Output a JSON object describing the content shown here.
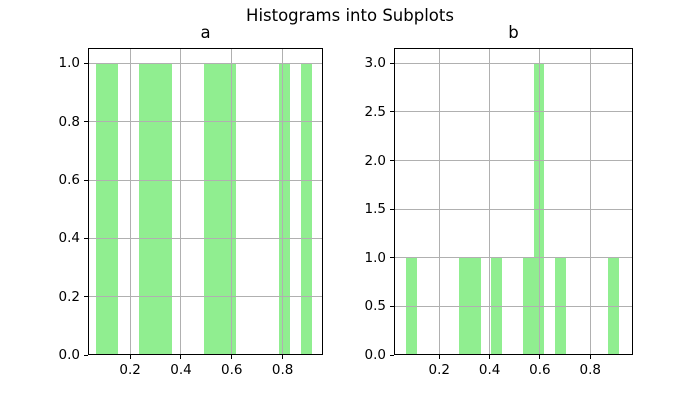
{
  "figure": {
    "title": "Histograms into Subplots",
    "background_color": "#ffffff"
  },
  "colors": {
    "bar_fill": "#90ee90",
    "grid": "#b0b0b0",
    "spine": "#000000",
    "text": "#000000"
  },
  "chart_data": [
    {
      "type": "bar",
      "subtype": "histogram",
      "title": "a",
      "xlabel": "",
      "ylabel": "",
      "xlim": [
        0.034,
        0.959
      ],
      "ylim": [
        0,
        1.053
      ],
      "xticks": [
        0.2,
        0.4,
        0.6,
        0.8
      ],
      "yticks": [
        0.0,
        0.2,
        0.4,
        0.6,
        0.8,
        1.0
      ],
      "grid": true,
      "legend": false,
      "bars": [
        {
          "x0": 0.066,
          "x1": 0.151,
          "height": 1
        },
        {
          "x0": 0.236,
          "x1": 0.363,
          "height": 1
        },
        {
          "x0": 0.49,
          "x1": 0.617,
          "height": 1
        },
        {
          "x0": 0.786,
          "x1": 0.829,
          "height": 1
        },
        {
          "x0": 0.871,
          "x1": 0.914,
          "height": 1
        }
      ]
    },
    {
      "type": "bar",
      "subtype": "histogram",
      "title": "b",
      "xlabel": "",
      "ylabel": "",
      "xlim": [
        0.02,
        0.97
      ],
      "ylim": [
        0,
        3.158
      ],
      "xticks": [
        0.2,
        0.4,
        0.6,
        0.8
      ],
      "yticks": [
        0.0,
        0.5,
        1.0,
        1.5,
        2.0,
        2.5,
        3.0
      ],
      "grid": true,
      "legend": false,
      "bars": [
        {
          "x0": 0.068,
          "x1": 0.11,
          "height": 1
        },
        {
          "x0": 0.279,
          "x1": 0.364,
          "height": 1
        },
        {
          "x0": 0.406,
          "x1": 0.448,
          "height": 1
        },
        {
          "x0": 0.533,
          "x1": 0.575,
          "height": 1
        },
        {
          "x0": 0.575,
          "x1": 0.617,
          "height": 3
        },
        {
          "x0": 0.659,
          "x1": 0.702,
          "height": 1
        },
        {
          "x0": 0.871,
          "x1": 0.913,
          "height": 1
        }
      ]
    }
  ]
}
